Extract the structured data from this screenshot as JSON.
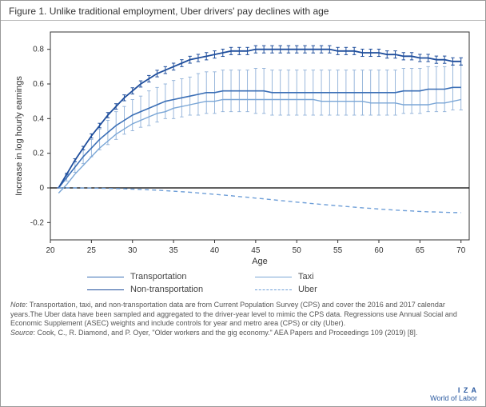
{
  "title": "Figure 1. Unlike traditional employment, Uber drivers' pay declines with age",
  "chart": {
    "type": "line",
    "xlabel": "Age",
    "ylabel": "Increase in log hourly earnings",
    "label_fontsize": 11,
    "tick_fontsize": 10,
    "background_color": "#ffffff",
    "border_color": "#333333",
    "xlim": [
      20,
      71
    ],
    "ylim": [
      -0.3,
      0.9
    ],
    "xticks": [
      20,
      25,
      30,
      35,
      40,
      45,
      50,
      55,
      60,
      65,
      70
    ],
    "yticks": [
      -0.2,
      0,
      0.2,
      0.4,
      0.6,
      0.8
    ],
    "zero_line_color": "#000000",
    "zero_line_width": 1.2,
    "x_points": [
      21,
      22,
      23,
      24,
      25,
      26,
      27,
      28,
      29,
      30,
      31,
      32,
      33,
      34,
      35,
      36,
      37,
      38,
      39,
      40,
      41,
      42,
      43,
      44,
      45,
      46,
      47,
      48,
      49,
      50,
      51,
      52,
      53,
      54,
      55,
      56,
      57,
      58,
      59,
      60,
      61,
      62,
      63,
      64,
      65,
      66,
      67,
      68,
      69,
      70
    ],
    "series": {
      "transportation": {
        "label": "Transportation",
        "color": "#3b6fb6",
        "line_width": 1.6,
        "dash": "none",
        "has_error": true,
        "error_color": "#8fb0d8",
        "error_width": 0.9,
        "cap_width": 2.2,
        "y": [
          0.0,
          0.06,
          0.12,
          0.18,
          0.23,
          0.28,
          0.32,
          0.36,
          0.39,
          0.42,
          0.44,
          0.46,
          0.48,
          0.5,
          0.51,
          0.52,
          0.53,
          0.54,
          0.55,
          0.55,
          0.56,
          0.56,
          0.56,
          0.56,
          0.56,
          0.56,
          0.55,
          0.55,
          0.55,
          0.55,
          0.55,
          0.55,
          0.55,
          0.55,
          0.55,
          0.55,
          0.55,
          0.55,
          0.55,
          0.55,
          0.55,
          0.55,
          0.56,
          0.56,
          0.56,
          0.57,
          0.57,
          0.57,
          0.58,
          0.58
        ],
        "err": [
          0.0,
          0.02,
          0.03,
          0.04,
          0.05,
          0.06,
          0.07,
          0.08,
          0.08,
          0.09,
          0.09,
          0.1,
          0.1,
          0.1,
          0.11,
          0.11,
          0.11,
          0.12,
          0.12,
          0.12,
          0.12,
          0.12,
          0.12,
          0.12,
          0.13,
          0.13,
          0.13,
          0.13,
          0.13,
          0.13,
          0.13,
          0.13,
          0.13,
          0.13,
          0.13,
          0.13,
          0.13,
          0.13,
          0.13,
          0.13,
          0.13,
          0.13,
          0.13,
          0.13,
          0.13,
          0.13,
          0.13,
          0.13,
          0.13,
          0.13
        ]
      },
      "taxi": {
        "label": "Taxi",
        "color": "#7aa6d6",
        "line_width": 1.4,
        "dash": "none",
        "has_error": false,
        "y": [
          -0.03,
          0.02,
          0.08,
          0.13,
          0.18,
          0.23,
          0.27,
          0.31,
          0.34,
          0.37,
          0.39,
          0.41,
          0.43,
          0.44,
          0.46,
          0.47,
          0.48,
          0.49,
          0.5,
          0.5,
          0.51,
          0.51,
          0.51,
          0.51,
          0.51,
          0.51,
          0.51,
          0.51,
          0.51,
          0.51,
          0.51,
          0.51,
          0.5,
          0.5,
          0.5,
          0.5,
          0.5,
          0.5,
          0.49,
          0.49,
          0.49,
          0.49,
          0.48,
          0.48,
          0.48,
          0.48,
          0.49,
          0.49,
          0.5,
          0.51
        ]
      },
      "non_transportation": {
        "label": "Non-transportation",
        "color": "#1f4e9c",
        "line_width": 1.8,
        "dash": "none",
        "has_error": true,
        "error_color": "#1f4e9c",
        "error_width": 1.0,
        "cap_width": 2.2,
        "y": [
          0.0,
          0.08,
          0.16,
          0.23,
          0.3,
          0.36,
          0.42,
          0.47,
          0.52,
          0.56,
          0.6,
          0.63,
          0.66,
          0.68,
          0.7,
          0.72,
          0.74,
          0.75,
          0.76,
          0.77,
          0.78,
          0.79,
          0.79,
          0.79,
          0.8,
          0.8,
          0.8,
          0.8,
          0.8,
          0.8,
          0.8,
          0.8,
          0.8,
          0.8,
          0.79,
          0.79,
          0.79,
          0.78,
          0.78,
          0.78,
          0.77,
          0.77,
          0.76,
          0.76,
          0.75,
          0.75,
          0.74,
          0.74,
          0.73,
          0.73
        ],
        "err": [
          0.0,
          0.005,
          0.008,
          0.01,
          0.012,
          0.013,
          0.015,
          0.016,
          0.017,
          0.018,
          0.018,
          0.019,
          0.019,
          0.02,
          0.02,
          0.02,
          0.02,
          0.021,
          0.021,
          0.021,
          0.021,
          0.021,
          0.021,
          0.021,
          0.021,
          0.021,
          0.021,
          0.021,
          0.021,
          0.021,
          0.021,
          0.021,
          0.021,
          0.021,
          0.021,
          0.021,
          0.021,
          0.021,
          0.021,
          0.021,
          0.021,
          0.021,
          0.021,
          0.021,
          0.021,
          0.021,
          0.021,
          0.021,
          0.021,
          0.021
        ]
      },
      "uber": {
        "label": "Uber",
        "color": "#6f9fd8",
        "line_width": 1.4,
        "dash": "5,4",
        "has_error": false,
        "y": [
          0.0,
          0.0,
          0.0,
          -0.001,
          -0.001,
          -0.002,
          -0.003,
          -0.004,
          -0.005,
          -0.007,
          -0.009,
          -0.011,
          -0.013,
          -0.016,
          -0.019,
          -0.022,
          -0.025,
          -0.029,
          -0.033,
          -0.037,
          -0.041,
          -0.045,
          -0.05,
          -0.054,
          -0.059,
          -0.063,
          -0.068,
          -0.073,
          -0.077,
          -0.082,
          -0.086,
          -0.091,
          -0.095,
          -0.099,
          -0.103,
          -0.107,
          -0.111,
          -0.115,
          -0.118,
          -0.122,
          -0.125,
          -0.128,
          -0.131,
          -0.133,
          -0.136,
          -0.138,
          -0.139,
          -0.141,
          -0.142,
          -0.143
        ]
      }
    }
  },
  "legend_order": [
    "transportation",
    "taxi",
    "non_transportation",
    "uber"
  ],
  "note_label": "Note",
  "note_text": ": Transportation, taxi, and non-transportation data are from Current Population Survey (CPS) and cover the 2016 and 2017 calendar years.The Uber data have been sampled and aggregated to the driver-year level to mimic the CPS data. Regressions use Annual Social and Economic Supplement (ASEC) weights and include controls for year and metro area (CPS) or city (Uber).",
  "source_label": "Source",
  "source_text": ": Cook, C., R. Diamond, and P. Oyer, \"Older workers and the gig economy.\" AEA Papers and Proceedings 109 (2019) [8].",
  "footer": {
    "line1": "I Z A",
    "line2": "World of Labor"
  }
}
